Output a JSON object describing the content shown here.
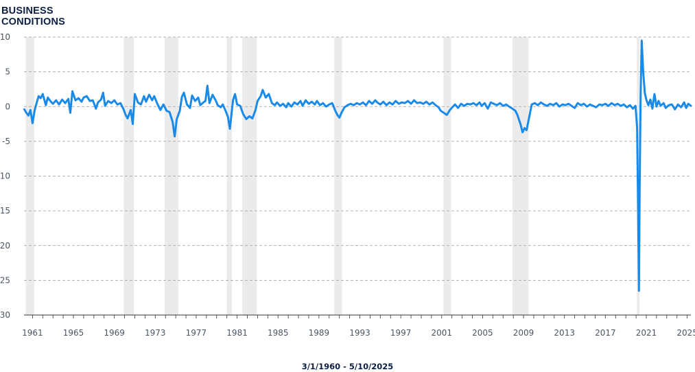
{
  "title": {
    "line1": "BUSINESS",
    "line2": "CONDITIONS"
  },
  "date_range": "3/1/1960 - 5/10/2025",
  "colors": {
    "line": "#1a8ae8",
    "recession": "#ebebeb",
    "grid": "#9a9a9a",
    "axis": "#333333"
  },
  "chart_data": {
    "type": "line",
    "title": "BUSINESS CONDITIONS",
    "xlabel": "",
    "ylabel": "",
    "xlim": [
      1960.17,
      2025.36
    ],
    "ylim": [
      -30,
      10
    ],
    "yticks": [
      10,
      5,
      0,
      -5,
      -10,
      -15,
      -20,
      -25,
      -30
    ],
    "xticks": [
      1961,
      1965,
      1969,
      1973,
      1977,
      1981,
      1985,
      1989,
      1993,
      1997,
      2001,
      2005,
      2009,
      2013,
      2017,
      2021,
      2025
    ],
    "grid": "horizontal dashed",
    "recessions": [
      [
        1960.33,
        1961.17
      ],
      [
        1969.92,
        1970.92
      ],
      [
        1973.92,
        1975.25
      ],
      [
        1980.0,
        1980.5
      ],
      [
        1981.5,
        1982.92
      ],
      [
        1990.5,
        1991.25
      ],
      [
        2001.17,
        2001.92
      ],
      [
        2007.92,
        2009.5
      ],
      [
        2020.08,
        2020.33
      ]
    ],
    "series": [
      {
        "values": [
          [
            1960.2,
            -0.4
          ],
          [
            1960.4,
            -0.9
          ],
          [
            1960.6,
            -1.3
          ],
          [
            1960.8,
            -0.5
          ],
          [
            1961.0,
            -2.4
          ],
          [
            1961.2,
            -0.6
          ],
          [
            1961.4,
            0.5
          ],
          [
            1961.6,
            1.5
          ],
          [
            1961.8,
            1.2
          ],
          [
            1962.0,
            1.8
          ],
          [
            1962.3,
            0.2
          ],
          [
            1962.5,
            1.3
          ],
          [
            1962.8,
            0.7
          ],
          [
            1963.0,
            0.4
          ],
          [
            1963.3,
            0.9
          ],
          [
            1963.6,
            0.3
          ],
          [
            1963.9,
            1.0
          ],
          [
            1964.2,
            0.5
          ],
          [
            1964.5,
            1.1
          ],
          [
            1964.7,
            -0.9
          ],
          [
            1964.9,
            2.2
          ],
          [
            1965.2,
            0.9
          ],
          [
            1965.5,
            1.2
          ],
          [
            1965.8,
            0.7
          ],
          [
            1966.0,
            1.3
          ],
          [
            1966.3,
            1.5
          ],
          [
            1966.6,
            0.8
          ],
          [
            1966.9,
            0.9
          ],
          [
            1967.2,
            -0.3
          ],
          [
            1967.4,
            0.6
          ],
          [
            1967.7,
            1.0
          ],
          [
            1967.9,
            2.0
          ],
          [
            1968.1,
            0.1
          ],
          [
            1968.4,
            0.8
          ],
          [
            1968.7,
            0.5
          ],
          [
            1969.0,
            0.9
          ],
          [
            1969.3,
            0.3
          ],
          [
            1969.6,
            0.5
          ],
          [
            1969.9,
            -0.4
          ],
          [
            1970.1,
            -1.2
          ],
          [
            1970.3,
            -1.7
          ],
          [
            1970.6,
            -0.5
          ],
          [
            1970.8,
            -2.5
          ],
          [
            1971.0,
            1.8
          ],
          [
            1971.3,
            0.6
          ],
          [
            1971.6,
            0.3
          ],
          [
            1971.9,
            1.5
          ],
          [
            1972.1,
            0.7
          ],
          [
            1972.4,
            1.7
          ],
          [
            1972.7,
            0.9
          ],
          [
            1972.9,
            1.5
          ],
          [
            1973.2,
            0.4
          ],
          [
            1973.5,
            -0.5
          ],
          [
            1973.8,
            0.3
          ],
          [
            1974.1,
            -0.6
          ],
          [
            1974.4,
            -0.8
          ],
          [
            1974.7,
            -2.2
          ],
          [
            1974.9,
            -4.3
          ],
          [
            1975.1,
            -1.8
          ],
          [
            1975.4,
            -0.6
          ],
          [
            1975.6,
            1.4
          ],
          [
            1975.8,
            2.0
          ],
          [
            1976.1,
            0.3
          ],
          [
            1976.4,
            -0.2
          ],
          [
            1976.6,
            1.6
          ],
          [
            1976.9,
            0.8
          ],
          [
            1977.2,
            1.3
          ],
          [
            1977.4,
            0.2
          ],
          [
            1977.7,
            0.6
          ],
          [
            1977.9,
            0.8
          ],
          [
            1978.1,
            3.0
          ],
          [
            1978.3,
            0.5
          ],
          [
            1978.6,
            1.7
          ],
          [
            1978.9,
            0.9
          ],
          [
            1979.1,
            0.2
          ],
          [
            1979.4,
            -0.1
          ],
          [
            1979.6,
            0.3
          ],
          [
            1979.9,
            -0.7
          ],
          [
            1980.1,
            -1.5
          ],
          [
            1980.3,
            -3.2
          ],
          [
            1980.6,
            0.9
          ],
          [
            1980.8,
            1.8
          ],
          [
            1981.0,
            0.3
          ],
          [
            1981.3,
            0.1
          ],
          [
            1981.6,
            -1.1
          ],
          [
            1981.9,
            -1.8
          ],
          [
            1982.2,
            -1.4
          ],
          [
            1982.5,
            -1.7
          ],
          [
            1982.8,
            -0.5
          ],
          [
            1983.0,
            0.8
          ],
          [
            1983.3,
            1.5
          ],
          [
            1983.5,
            2.4
          ],
          [
            1983.8,
            1.3
          ],
          [
            1984.1,
            1.8
          ],
          [
            1984.4,
            0.5
          ],
          [
            1984.7,
            0.2
          ],
          [
            1984.9,
            0.6
          ],
          [
            1985.2,
            0.1
          ],
          [
            1985.5,
            0.4
          ],
          [
            1985.8,
            -0.1
          ],
          [
            1986.0,
            0.5
          ],
          [
            1986.3,
            0.0
          ],
          [
            1986.6,
            0.6
          ],
          [
            1986.9,
            0.3
          ],
          [
            1987.2,
            0.8
          ],
          [
            1987.4,
            0.1
          ],
          [
            1987.7,
            0.9
          ],
          [
            1988.0,
            0.4
          ],
          [
            1988.3,
            0.7
          ],
          [
            1988.6,
            0.3
          ],
          [
            1988.8,
            0.8
          ],
          [
            1989.1,
            0.2
          ],
          [
            1989.4,
            0.5
          ],
          [
            1989.7,
            0.0
          ],
          [
            1990.0,
            0.3
          ],
          [
            1990.3,
            0.5
          ],
          [
            1990.6,
            -0.6
          ],
          [
            1990.8,
            -1.2
          ],
          [
            1991.0,
            -1.6
          ],
          [
            1991.2,
            -0.9
          ],
          [
            1991.5,
            -0.1
          ],
          [
            1991.8,
            0.2
          ],
          [
            1992.1,
            0.4
          ],
          [
            1992.4,
            0.2
          ],
          [
            1992.7,
            0.5
          ],
          [
            1993.0,
            0.3
          ],
          [
            1993.3,
            0.6
          ],
          [
            1993.6,
            0.2
          ],
          [
            1993.9,
            0.8
          ],
          [
            1994.2,
            0.4
          ],
          [
            1994.5,
            0.9
          ],
          [
            1994.7,
            0.6
          ],
          [
            1995.0,
            0.3
          ],
          [
            1995.3,
            0.7
          ],
          [
            1995.6,
            0.2
          ],
          [
            1995.9,
            0.6
          ],
          [
            1996.2,
            0.3
          ],
          [
            1996.5,
            0.8
          ],
          [
            1996.8,
            0.4
          ],
          [
            1997.1,
            0.6
          ],
          [
            1997.4,
            0.5
          ],
          [
            1997.7,
            0.8
          ],
          [
            1998.0,
            0.4
          ],
          [
            1998.3,
            0.9
          ],
          [
            1998.6,
            0.5
          ],
          [
            1998.9,
            0.6
          ],
          [
            1999.2,
            0.4
          ],
          [
            1999.5,
            0.7
          ],
          [
            1999.8,
            0.3
          ],
          [
            2000.1,
            0.6
          ],
          [
            2000.4,
            0.2
          ],
          [
            2000.7,
            -0.1
          ],
          [
            2000.9,
            -0.6
          ],
          [
            2001.2,
            -0.9
          ],
          [
            2001.5,
            -1.2
          ],
          [
            2001.8,
            -0.5
          ],
          [
            2002.1,
            0.0
          ],
          [
            2002.3,
            0.3
          ],
          [
            2002.6,
            -0.2
          ],
          [
            2002.9,
            0.4
          ],
          [
            2003.2,
            0.1
          ],
          [
            2003.5,
            0.4
          ],
          [
            2003.8,
            0.3
          ],
          [
            2004.1,
            0.5
          ],
          [
            2004.4,
            0.2
          ],
          [
            2004.7,
            0.6
          ],
          [
            2004.9,
            0.1
          ],
          [
            2005.2,
            0.5
          ],
          [
            2005.5,
            -0.3
          ],
          [
            2005.8,
            0.6
          ],
          [
            2006.1,
            0.4
          ],
          [
            2006.4,
            0.2
          ],
          [
            2006.7,
            0.5
          ],
          [
            2007.0,
            0.1
          ],
          [
            2007.3,
            0.3
          ],
          [
            2007.6,
            0.0
          ],
          [
            2007.9,
            -0.3
          ],
          [
            2008.2,
            -0.6
          ],
          [
            2008.4,
            -1.2
          ],
          [
            2008.7,
            -2.5
          ],
          [
            2008.9,
            -3.7
          ],
          [
            2009.1,
            -3.1
          ],
          [
            2009.3,
            -3.4
          ],
          [
            2009.6,
            -1.2
          ],
          [
            2009.8,
            0.3
          ],
          [
            2010.1,
            0.5
          ],
          [
            2010.4,
            0.2
          ],
          [
            2010.7,
            0.6
          ],
          [
            2011.0,
            0.3
          ],
          [
            2011.3,
            0.1
          ],
          [
            2011.6,
            0.4
          ],
          [
            2011.9,
            0.2
          ],
          [
            2012.2,
            0.5
          ],
          [
            2012.5,
            0.0
          ],
          [
            2012.8,
            0.3
          ],
          [
            2013.1,
            0.2
          ],
          [
            2013.4,
            0.4
          ],
          [
            2013.7,
            0.1
          ],
          [
            2014.0,
            -0.2
          ],
          [
            2014.3,
            0.5
          ],
          [
            2014.6,
            0.2
          ],
          [
            2014.9,
            0.4
          ],
          [
            2015.2,
            0.0
          ],
          [
            2015.5,
            0.3
          ],
          [
            2015.8,
            0.1
          ],
          [
            2016.1,
            -0.1
          ],
          [
            2016.4,
            0.3
          ],
          [
            2016.7,
            0.2
          ],
          [
            2017.0,
            0.4
          ],
          [
            2017.3,
            0.1
          ],
          [
            2017.6,
            0.5
          ],
          [
            2017.9,
            0.2
          ],
          [
            2018.2,
            0.4
          ],
          [
            2018.5,
            0.1
          ],
          [
            2018.8,
            0.3
          ],
          [
            2019.1,
            -0.1
          ],
          [
            2019.4,
            0.2
          ],
          [
            2019.7,
            -0.3
          ],
          [
            2019.95,
            0.1
          ],
          [
            2020.1,
            -3.0
          ],
          [
            2020.2,
            -15.0
          ],
          [
            2020.28,
            -26.5
          ],
          [
            2020.35,
            -12.0
          ],
          [
            2020.45,
            2.0
          ],
          [
            2020.55,
            9.5
          ],
          [
            2020.7,
            5.0
          ],
          [
            2020.85,
            2.0
          ],
          [
            2021.0,
            1.0
          ],
          [
            2021.2,
            0.2
          ],
          [
            2021.4,
            1.0
          ],
          [
            2021.6,
            -0.3
          ],
          [
            2021.8,
            1.8
          ],
          [
            2022.0,
            0.0
          ],
          [
            2022.2,
            0.8
          ],
          [
            2022.4,
            0.1
          ],
          [
            2022.7,
            0.5
          ],
          [
            2022.9,
            -0.2
          ],
          [
            2023.2,
            0.2
          ],
          [
            2023.5,
            0.3
          ],
          [
            2023.8,
            -0.4
          ],
          [
            2024.1,
            0.3
          ],
          [
            2024.4,
            -0.1
          ],
          [
            2024.7,
            0.6
          ],
          [
            2024.9,
            -0.2
          ],
          [
            2025.1,
            0.4
          ],
          [
            2025.36,
            0.1
          ]
        ]
      }
    ]
  }
}
